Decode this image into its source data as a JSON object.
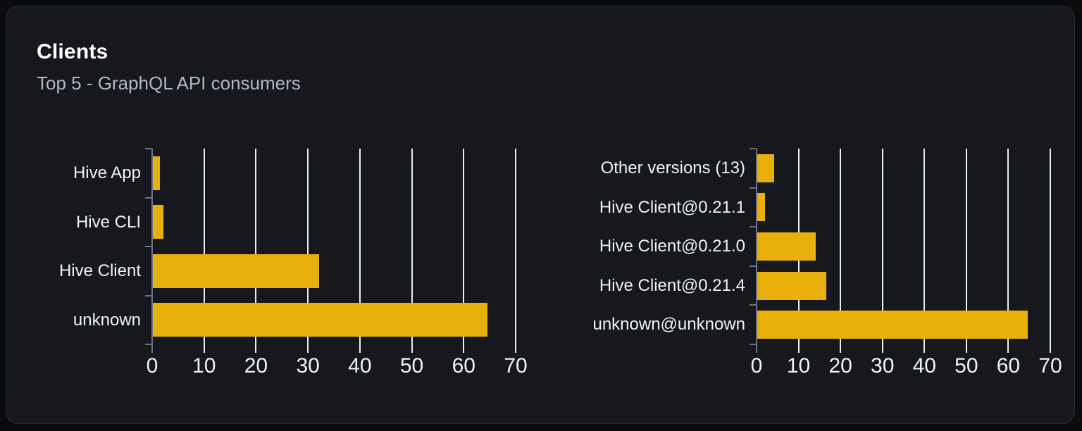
{
  "card": {
    "title": "Clients",
    "subtitle": "Top 5 - GraphQL API consumers"
  },
  "colors": {
    "page_background": "#0a0b0d",
    "card_background": "#16181d",
    "card_border": "#262a32",
    "bar": "#e8b00b",
    "gridline": "#e9ecf3",
    "axis": "#6d7380",
    "title_text": "#ffffff",
    "subtitle_text": "#b3b8c1",
    "label_text": "#eef1f5"
  },
  "chart_data": [
    {
      "type": "bar",
      "orientation": "horizontal",
      "title": "",
      "categories": [
        "Hive App",
        "Hive CLI",
        "Hive Client",
        "unknown"
      ],
      "values": [
        1.3,
        2,
        32,
        64.5
      ],
      "xlabel": "",
      "ylabel": "",
      "xlim": [
        0,
        70
      ],
      "xticks": [
        0,
        10,
        20,
        30,
        40,
        50,
        60,
        70
      ],
      "grid": true,
      "legend": false
    },
    {
      "type": "bar",
      "orientation": "horizontal",
      "title": "",
      "categories": [
        "Other versions (13)",
        "Hive Client@0.21.1",
        "Hive Client@0.21.0",
        "Hive Client@0.21.4",
        "unknown@unknown"
      ],
      "values": [
        4,
        1.9,
        14,
        16.5,
        64.5
      ],
      "xlabel": "",
      "ylabel": "",
      "xlim": [
        0,
        70
      ],
      "xticks": [
        0,
        10,
        20,
        30,
        40,
        50,
        60,
        70
      ],
      "grid": true,
      "legend": false
    }
  ]
}
